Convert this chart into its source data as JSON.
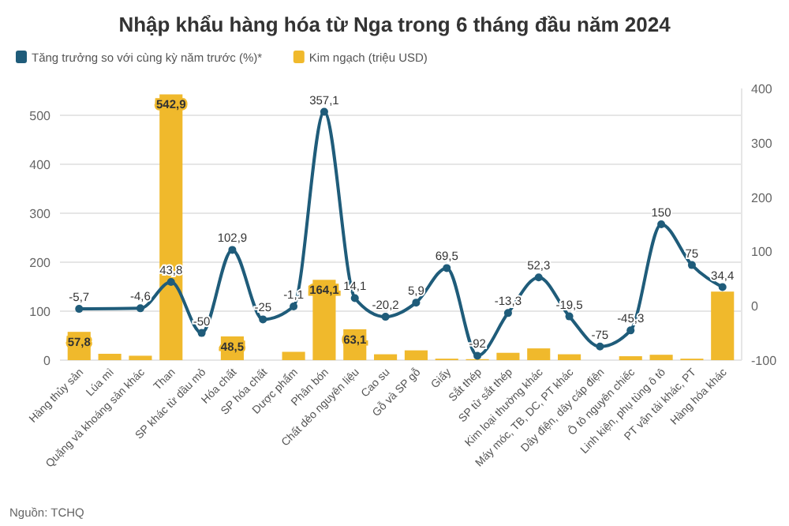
{
  "chart_data": {
    "type": "bar",
    "title": "Nhập khẩu hàng hóa từ Nga trong 6 tháng đầu năm 2024",
    "categories": [
      "Hàng thủy sản",
      "Lúa mì",
      "Quặng và khoáng sản khác",
      "Than",
      "SP khác từ dầu mỏ",
      "Hóa chất",
      "SP hóa chất",
      "Dược phẩm",
      "Phân bón",
      "Chất dẻo nguyên liệu",
      "Cao su",
      "Gỗ và SP gỗ",
      "Giấy",
      "Sắt thép",
      "SP từ sắt thép",
      "Kim loại thường khác",
      "Máy móc, TB, DC, PT khác",
      "Dây điện, dây cáp điện",
      "Ô tô nguyên chiếc",
      "Linh kiện, phụ tùng ô tô",
      "PT vận tải khác, PT",
      "Hàng hóa khác"
    ],
    "series": [
      {
        "name": "Tăng trưởng so với cùng kỳ năm trước (%)*",
        "type": "line",
        "axis": "y2",
        "color": "#1f5c7a",
        "values": [
          -5.7,
          null,
          -4.6,
          43.8,
          -50,
          102.9,
          -25,
          -1.1,
          357.1,
          14.1,
          -20.2,
          5.9,
          69.5,
          -92,
          -13.3,
          52.3,
          -19.5,
          -75,
          -45.3,
          150,
          75,
          34.4
        ],
        "value_labels": [
          "-5,7",
          null,
          "-4,6",
          "43,8",
          "-50",
          "102,9",
          "-25",
          "-1,1",
          "357,1",
          "14,1",
          "-20,2",
          "5,9",
          "69,5",
          "-92",
          "-13,3",
          "52,3",
          "-19,5",
          "-75",
          "-45,3",
          "150",
          "75",
          "34,4"
        ]
      },
      {
        "name": "Kim ngạch (triệu USD)",
        "color": "#f0b92c",
        "values": [
          57.8,
          13,
          9,
          542.9,
          0,
          48.5,
          0,
          17,
          164.1,
          63.1,
          12,
          20,
          3,
          2,
          15,
          24,
          12,
          0,
          8,
          11,
          3,
          140
        ],
        "value_labels": [
          "57,8",
          null,
          null,
          "542,9",
          null,
          "48,5",
          null,
          null,
          "164,1",
          "63,1",
          null,
          null,
          null,
          null,
          null,
          null,
          null,
          null,
          null,
          null,
          null,
          null
        ]
      }
    ],
    "ylim": [
      0,
      555
    ],
    "yticks": [
      0,
      100,
      200,
      300,
      400,
      500
    ],
    "y2lim": [
      -100,
      400
    ],
    "y2ticks": [
      -100,
      0,
      100,
      200,
      300,
      400
    ],
    "grid": "y",
    "legend": "top left",
    "marker": "circle",
    "annotations": [
      "Nguồn: TCHQ"
    ]
  }
}
